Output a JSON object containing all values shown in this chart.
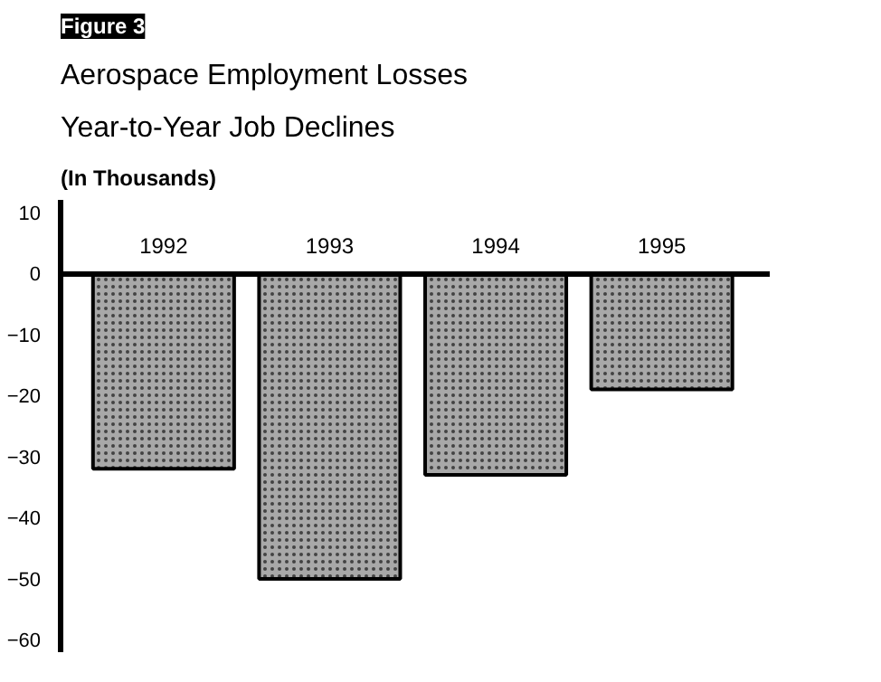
{
  "chart_data": {
    "type": "bar",
    "title": "Aerospace Employment Losses",
    "subtitle": "Year-to-Year Job Declines",
    "ylabel": "(In Thousands)",
    "annotations": [
      "Figure 3"
    ],
    "categories": [
      "1992",
      "1993",
      "1994",
      "1995"
    ],
    "values": [
      -32,
      -50,
      -33,
      -19
    ],
    "color": "#a8a8a8",
    "ylim": [
      -62,
      12
    ],
    "yticks": [
      10,
      0,
      -10,
      -20,
      -30,
      -40,
      -50,
      -60
    ],
    "grid": false
  }
}
